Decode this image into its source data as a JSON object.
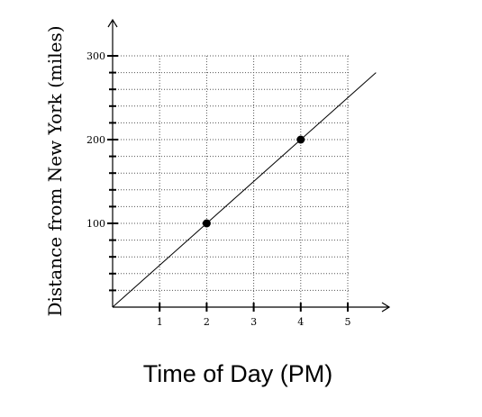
{
  "chart_data": {
    "type": "line",
    "title": "",
    "xlabel": "Time of Day (PM)",
    "ylabel": "Distance from New York (miles)",
    "xlim": [
      0,
      6
    ],
    "ylim": [
      0,
      300
    ],
    "x_ticks": [
      {
        "value": 1,
        "label": "1"
      },
      {
        "value": 2,
        "label": "2"
      },
      {
        "value": 3,
        "label": "3"
      },
      {
        "value": 4,
        "label": "4"
      },
      {
        "value": 5,
        "label": "5"
      }
    ],
    "y_ticks": [
      {
        "value": 100,
        "label": "100"
      },
      {
        "value": 200,
        "label": "200"
      },
      {
        "value": 300,
        "label": "300"
      }
    ],
    "vertical_gridlines": [
      1,
      2,
      3,
      4,
      5
    ],
    "horizontal_gridlines": [
      20,
      40,
      60,
      80,
      100,
      120,
      140,
      160,
      180,
      200,
      220,
      240,
      260,
      280,
      300
    ],
    "grid": true,
    "line": {
      "x": [
        0,
        5.6
      ],
      "y": [
        0,
        280
      ]
    },
    "points": [
      {
        "x": 2,
        "y": 100
      },
      {
        "x": 4,
        "y": 200
      }
    ]
  }
}
